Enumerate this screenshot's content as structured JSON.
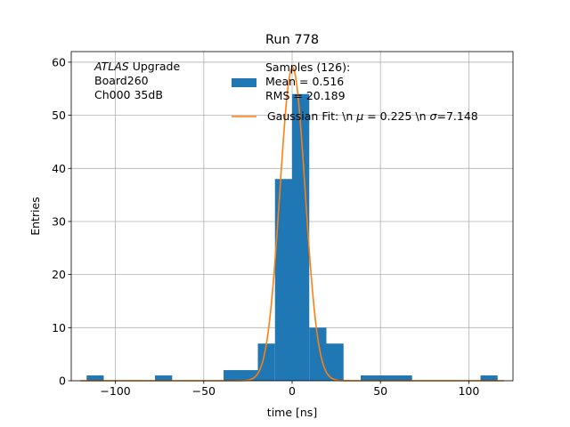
{
  "chart_data": {
    "type": "bar",
    "title": "Run 778",
    "xlabel": "time [ns]",
    "ylabel": "Entries",
    "xlim": [
      -125,
      125
    ],
    "ylim": [
      0,
      62
    ],
    "xticks": [
      -100,
      -50,
      0,
      50,
      100
    ],
    "xtick_labels": [
      "−100",
      "−50",
      "0",
      "50",
      "100"
    ],
    "yticks": [
      0,
      10,
      20,
      30,
      40,
      50,
      60
    ],
    "ytick_labels": [
      "0",
      "10",
      "20",
      "30",
      "40",
      "50",
      "60"
    ],
    "grid": true,
    "legend_position": "top-right",
    "annotation_lines": [
      {
        "italic": "ATLAS",
        "rest": " Upgrade"
      },
      {
        "italic": "",
        "rest": " Board260"
      },
      {
        "italic": "",
        "rest": " Ch000 35dB"
      }
    ],
    "histogram": {
      "name_lines": [
        "Samples (126):",
        " Mean = 0.516",
        " RMS = 20.189"
      ],
      "color": "#1f77b4",
      "bins": [
        {
          "x0": -116.3,
          "x1": -106.6,
          "value": 1
        },
        {
          "x0": -77.6,
          "x1": -67.9,
          "value": 1
        },
        {
          "x0": -38.8,
          "x1": -19.4,
          "value": 2
        },
        {
          "x0": -19.4,
          "x1": -9.7,
          "value": 7
        },
        {
          "x0": -9.7,
          "x1": 0.0,
          "value": 38
        },
        {
          "x0": 0.0,
          "x1": 9.7,
          "value": 54
        },
        {
          "x0": 9.7,
          "x1": 19.4,
          "value": 10
        },
        {
          "x0": 19.4,
          "x1": 29.1,
          "value": 7
        },
        {
          "x0": 38.8,
          "x1": 67.9,
          "value": 1
        },
        {
          "x0": 106.6,
          "x1": 116.3,
          "value": 1
        }
      ]
    },
    "fit": {
      "name": "Gaussian Fit: \\n μ = 0.225 \\n σ=7.148",
      "name_parts": {
        "prefix": "Gaussian Fit: \\n ",
        "mu": "μ",
        "mid": " = 0.225 \\n ",
        "sigma": "σ",
        "suffix": "=7.148"
      },
      "color": "#ff7f0e",
      "mean": 0.225,
      "sigma": 7.148,
      "amplitude": 59
    }
  }
}
